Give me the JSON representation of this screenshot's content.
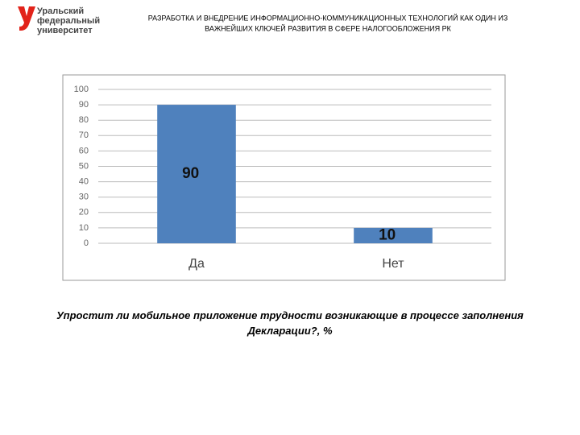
{
  "logo": {
    "lines": [
      "Уральский",
      "федеральный",
      "университет"
    ]
  },
  "header": {
    "lines": [
      "РАЗРАБОТКА И ВНЕДРЕНИЕ ИНФОРМАЦИОННО-КОММУНИКАЦИОННЫХ ТЕХНОЛОГИЙ КАК ОДИН ИЗ",
      "ВАЖНЕЙШИХ КЛЮЧЕЙ РАЗВИТИЯ В СФЕРЕ НАЛОГООБЛОЖЕНИЯ РК"
    ]
  },
  "chart_data": {
    "type": "bar",
    "title": "Упростит ли мобильное приложение трудности возникающие в процессе заполнения Декларации?, %",
    "categories": [
      "Да",
      "Нет"
    ],
    "values": [
      90,
      10
    ],
    "color": "#4f81bd",
    "ylim": [
      0,
      100
    ],
    "yticks": [
      0,
      10,
      20,
      30,
      40,
      50,
      60,
      70,
      80,
      90,
      100
    ],
    "grid": true
  }
}
